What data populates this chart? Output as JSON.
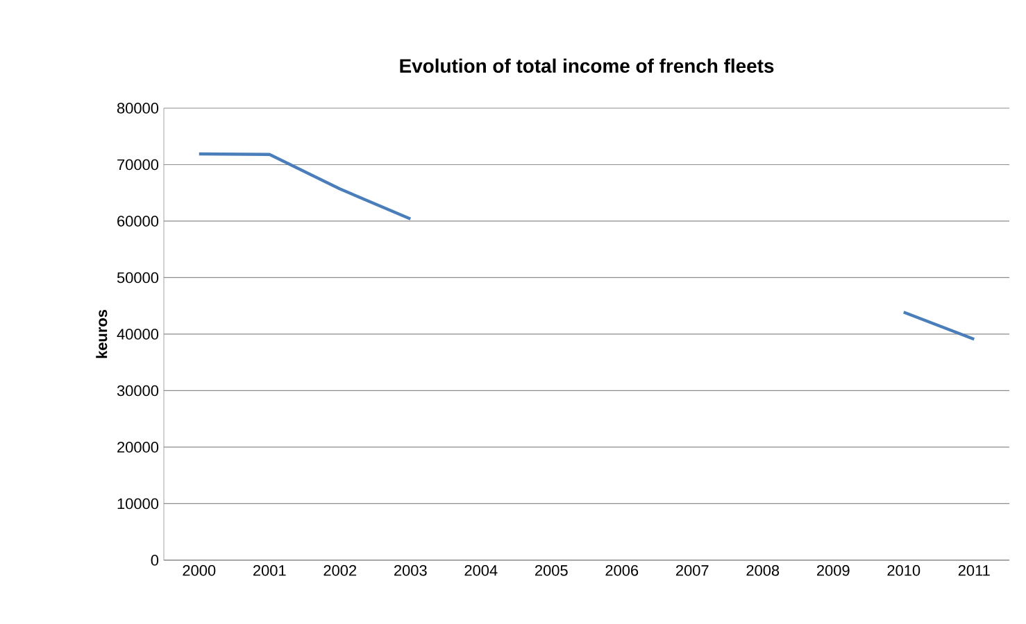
{
  "chart_data": {
    "type": "line",
    "title": "Evolution of total income of french fleets",
    "ylabel": "keuros",
    "categories": [
      "2000",
      "2001",
      "2002",
      "2003",
      "2004",
      "2005",
      "2006",
      "2007",
      "2008",
      "2009",
      "2010",
      "2011"
    ],
    "series": [
      {
        "color": "#4a7ebb",
        "values": [
          71900,
          71800,
          65700,
          60400,
          null,
          null,
          null,
          null,
          null,
          null,
          43900,
          39100
        ]
      }
    ],
    "ylim": [
      0,
      80000
    ],
    "yticks": [
      0,
      10000,
      20000,
      30000,
      40000,
      50000,
      60000,
      70000,
      80000
    ],
    "grid": "y",
    "legend": false,
    "marker": "none",
    "line_style": "solid"
  }
}
